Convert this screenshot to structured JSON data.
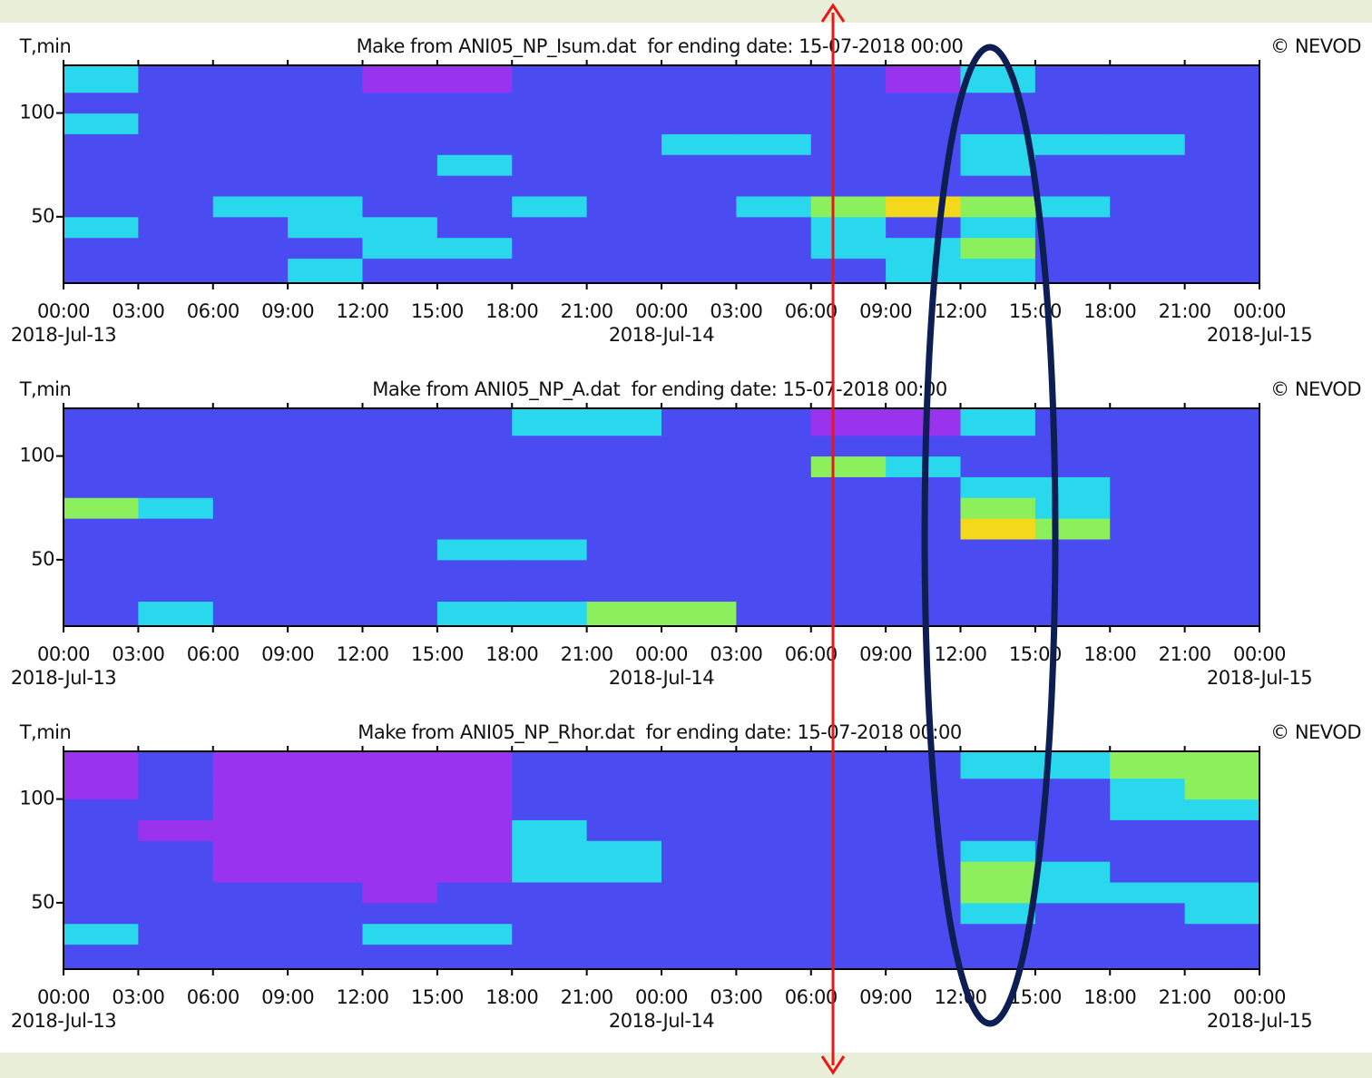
{
  "chart_data": [
    {
      "type": "heatmap",
      "title": "Make from ANI05_NP_Isum.dat  for ending date: 15-07-2018 00:00",
      "y_label": "T,min",
      "credit": "© NEVOD",
      "xlim": [
        0,
        48
      ],
      "ylim": [
        18,
        123
      ],
      "x_bins": [
        0,
        3,
        6,
        9,
        12,
        15,
        18,
        21,
        24,
        27,
        30,
        33,
        36,
        39,
        42,
        45,
        48
      ],
      "y_bins": [
        18,
        30,
        40,
        50,
        60,
        70,
        80,
        90,
        100,
        110,
        123
      ],
      "xticks": [
        {
          "value": 0,
          "label": "00:00"
        },
        {
          "value": 3,
          "label": "03:00"
        },
        {
          "value": 6,
          "label": "06:00"
        },
        {
          "value": 9,
          "label": "09:00"
        },
        {
          "value": 12,
          "label": "12:00"
        },
        {
          "value": 15,
          "label": "15:00"
        },
        {
          "value": 18,
          "label": "18:00"
        },
        {
          "value": 21,
          "label": "21:00"
        },
        {
          "value": 24,
          "label": "00:00"
        },
        {
          "value": 27,
          "label": "03:00"
        },
        {
          "value": 30,
          "label": "06:00"
        },
        {
          "value": 33,
          "label": "09:00"
        },
        {
          "value": 36,
          "label": "12:00"
        },
        {
          "value": 39,
          "label": "15:00"
        },
        {
          "value": 42,
          "label": "18:00"
        },
        {
          "value": 45,
          "label": "21:00"
        },
        {
          "value": 48,
          "label": "00:00"
        }
      ],
      "date_labels": [
        {
          "value": 0,
          "label": "2018-Jul-13"
        },
        {
          "value": 24,
          "label": "2018-Jul-14"
        },
        {
          "value": 48,
          "label": "2018-Jul-15"
        }
      ],
      "yticks": [
        50,
        100
      ],
      "colormap": [
        "#9a33ee",
        "#4a4cf2",
        "#2ad8ee",
        "#8cf05c",
        "#f4d81c"
      ],
      "values": [
        [
          1,
          1,
          1,
          2,
          1,
          1,
          1,
          1,
          1,
          1,
          1,
          2,
          2,
          1,
          1,
          1
        ],
        [
          1,
          1,
          1,
          1,
          2,
          2,
          1,
          1,
          1,
          1,
          2,
          2,
          3,
          1,
          1,
          1
        ],
        [
          2,
          1,
          1,
          2,
          2,
          1,
          1,
          1,
          1,
          1,
          2,
          1,
          2,
          1,
          1,
          1
        ],
        [
          1,
          1,
          2,
          2,
          1,
          1,
          2,
          1,
          1,
          2,
          3,
          4,
          3,
          2,
          1,
          1
        ],
        [
          1,
          1,
          1,
          1,
          1,
          1,
          1,
          1,
          1,
          1,
          1,
          1,
          1,
          1,
          1,
          1
        ],
        [
          1,
          1,
          1,
          1,
          1,
          2,
          1,
          1,
          1,
          1,
          1,
          1,
          2,
          1,
          1,
          1
        ],
        [
          1,
          1,
          1,
          1,
          1,
          1,
          1,
          1,
          2,
          2,
          1,
          1,
          2,
          2,
          2,
          1
        ],
        [
          2,
          1,
          1,
          1,
          1,
          1,
          1,
          1,
          1,
          1,
          1,
          1,
          1,
          1,
          1,
          1
        ],
        [
          1,
          1,
          1,
          1,
          1,
          1,
          1,
          1,
          1,
          1,
          1,
          1,
          1,
          1,
          1,
          1
        ],
        [
          2,
          1,
          1,
          1,
          0,
          0,
          1,
          1,
          1,
          1,
          1,
          0,
          2,
          1,
          1,
          1
        ]
      ]
    },
    {
      "type": "heatmap",
      "title": "Make from ANI05_NP_A.dat  for ending date: 15-07-2018 00:00",
      "y_label": "T,min",
      "credit": "© NEVOD",
      "xlim": [
        0,
        48
      ],
      "ylim": [
        18,
        123
      ],
      "x_bins": [
        0,
        3,
        6,
        9,
        12,
        15,
        18,
        21,
        24,
        27,
        30,
        33,
        36,
        39,
        42,
        45,
        48
      ],
      "y_bins": [
        18,
        30,
        40,
        50,
        60,
        70,
        80,
        90,
        100,
        110,
        123
      ],
      "xticks": [
        {
          "value": 0,
          "label": "00:00"
        },
        {
          "value": 3,
          "label": "03:00"
        },
        {
          "value": 6,
          "label": "06:00"
        },
        {
          "value": 9,
          "label": "09:00"
        },
        {
          "value": 12,
          "label": "12:00"
        },
        {
          "value": 15,
          "label": "15:00"
        },
        {
          "value": 18,
          "label": "18:00"
        },
        {
          "value": 21,
          "label": "21:00"
        },
        {
          "value": 24,
          "label": "00:00"
        },
        {
          "value": 27,
          "label": "03:00"
        },
        {
          "value": 30,
          "label": "06:00"
        },
        {
          "value": 33,
          "label": "09:00"
        },
        {
          "value": 36,
          "label": "12:00"
        },
        {
          "value": 39,
          "label": "15:00"
        },
        {
          "value": 42,
          "label": "18:00"
        },
        {
          "value": 45,
          "label": "21:00"
        },
        {
          "value": 48,
          "label": "00:00"
        }
      ],
      "date_labels": [
        {
          "value": 0,
          "label": "2018-Jul-13"
        },
        {
          "value": 24,
          "label": "2018-Jul-14"
        },
        {
          "value": 48,
          "label": "2018-Jul-15"
        }
      ],
      "yticks": [
        50,
        100
      ],
      "colormap": [
        "#9a33ee",
        "#4a4cf2",
        "#2ad8ee",
        "#8cf05c",
        "#f4d81c"
      ],
      "values": [
        [
          1,
          2,
          1,
          1,
          1,
          2,
          2,
          3,
          3,
          1,
          1,
          1,
          1,
          1,
          1,
          1
        ],
        [
          1,
          1,
          1,
          1,
          1,
          1,
          1,
          1,
          1,
          1,
          1,
          1,
          1,
          1,
          1,
          1
        ],
        [
          1,
          1,
          1,
          1,
          1,
          1,
          1,
          1,
          1,
          1,
          1,
          1,
          1,
          1,
          1,
          1
        ],
        [
          1,
          1,
          1,
          1,
          1,
          2,
          2,
          1,
          1,
          1,
          1,
          1,
          1,
          1,
          1,
          1
        ],
        [
          1,
          1,
          1,
          1,
          1,
          1,
          1,
          1,
          1,
          1,
          1,
          1,
          4,
          3,
          1,
          1
        ],
        [
          3,
          2,
          1,
          1,
          1,
          1,
          1,
          1,
          1,
          1,
          1,
          1,
          3,
          2,
          1,
          1
        ],
        [
          1,
          1,
          1,
          1,
          1,
          1,
          1,
          1,
          1,
          1,
          1,
          1,
          2,
          2,
          1,
          1
        ],
        [
          1,
          1,
          1,
          1,
          1,
          1,
          1,
          1,
          1,
          1,
          3,
          2,
          1,
          1,
          1,
          1
        ],
        [
          1,
          1,
          1,
          1,
          1,
          1,
          1,
          1,
          1,
          1,
          1,
          1,
          1,
          1,
          1,
          1
        ],
        [
          1,
          1,
          1,
          1,
          1,
          1,
          2,
          2,
          1,
          1,
          0,
          0,
          2,
          1,
          1,
          1
        ]
      ]
    },
    {
      "type": "heatmap",
      "title": "Make from ANI05_NP_Rhor.dat  for ending date: 15-07-2018 00:00",
      "y_label": "T,min",
      "credit": "© NEVOD",
      "xlim": [
        0,
        48
      ],
      "ylim": [
        18,
        123
      ],
      "x_bins": [
        0,
        3,
        6,
        9,
        12,
        15,
        18,
        21,
        24,
        27,
        30,
        33,
        36,
        39,
        42,
        45,
        48
      ],
      "y_bins": [
        18,
        30,
        40,
        50,
        60,
        70,
        80,
        90,
        100,
        110,
        123
      ],
      "xticks": [
        {
          "value": 0,
          "label": "00:00"
        },
        {
          "value": 3,
          "label": "03:00"
        },
        {
          "value": 6,
          "label": "06:00"
        },
        {
          "value": 9,
          "label": "09:00"
        },
        {
          "value": 12,
          "label": "12:00"
        },
        {
          "value": 15,
          "label": "15:00"
        },
        {
          "value": 18,
          "label": "18:00"
        },
        {
          "value": 21,
          "label": "21:00"
        },
        {
          "value": 24,
          "label": "00:00"
        },
        {
          "value": 27,
          "label": "03:00"
        },
        {
          "value": 30,
          "label": "06:00"
        },
        {
          "value": 33,
          "label": "09:00"
        },
        {
          "value": 36,
          "label": "12:00"
        },
        {
          "value": 39,
          "label": "15:00"
        },
        {
          "value": 42,
          "label": "18:00"
        },
        {
          "value": 45,
          "label": "21:00"
        },
        {
          "value": 48,
          "label": "00:00"
        }
      ],
      "date_labels": [
        {
          "value": 0,
          "label": "2018-Jul-13"
        },
        {
          "value": 24,
          "label": "2018-Jul-14"
        },
        {
          "value": 48,
          "label": "2018-Jul-15"
        }
      ],
      "yticks": [
        50,
        100
      ],
      "colormap": [
        "#9a33ee",
        "#4a4cf2",
        "#2ad8ee",
        "#8cf05c",
        "#f4d81c"
      ],
      "values": [
        [
          1,
          1,
          1,
          1,
          1,
          1,
          1,
          1,
          1,
          1,
          1,
          1,
          1,
          1,
          1,
          1
        ],
        [
          2,
          1,
          1,
          1,
          2,
          2,
          1,
          1,
          1,
          1,
          1,
          1,
          1,
          1,
          1,
          1
        ],
        [
          1,
          1,
          1,
          1,
          1,
          1,
          1,
          1,
          1,
          1,
          1,
          1,
          2,
          1,
          1,
          2
        ],
        [
          1,
          1,
          1,
          1,
          0,
          1,
          1,
          1,
          1,
          1,
          1,
          1,
          3,
          2,
          2,
          2
        ],
        [
          1,
          1,
          0,
          0,
          0,
          0,
          2,
          2,
          1,
          1,
          1,
          1,
          3,
          2,
          1,
          1
        ],
        [
          1,
          1,
          0,
          0,
          0,
          0,
          2,
          2,
          1,
          1,
          1,
          1,
          2,
          1,
          1,
          1
        ],
        [
          1,
          0,
          0,
          0,
          0,
          0,
          2,
          1,
          1,
          1,
          1,
          1,
          1,
          1,
          1,
          1
        ],
        [
          1,
          1,
          0,
          0,
          0,
          0,
          1,
          1,
          1,
          1,
          1,
          1,
          1,
          1,
          2,
          2
        ],
        [
          0,
          1,
          0,
          0,
          0,
          0,
          1,
          1,
          1,
          1,
          1,
          1,
          1,
          1,
          2,
          3
        ],
        [
          0,
          1,
          0,
          0,
          0,
          0,
          1,
          1,
          1,
          1,
          1,
          1,
          2,
          2,
          3,
          3
        ]
      ]
    }
  ]
}
